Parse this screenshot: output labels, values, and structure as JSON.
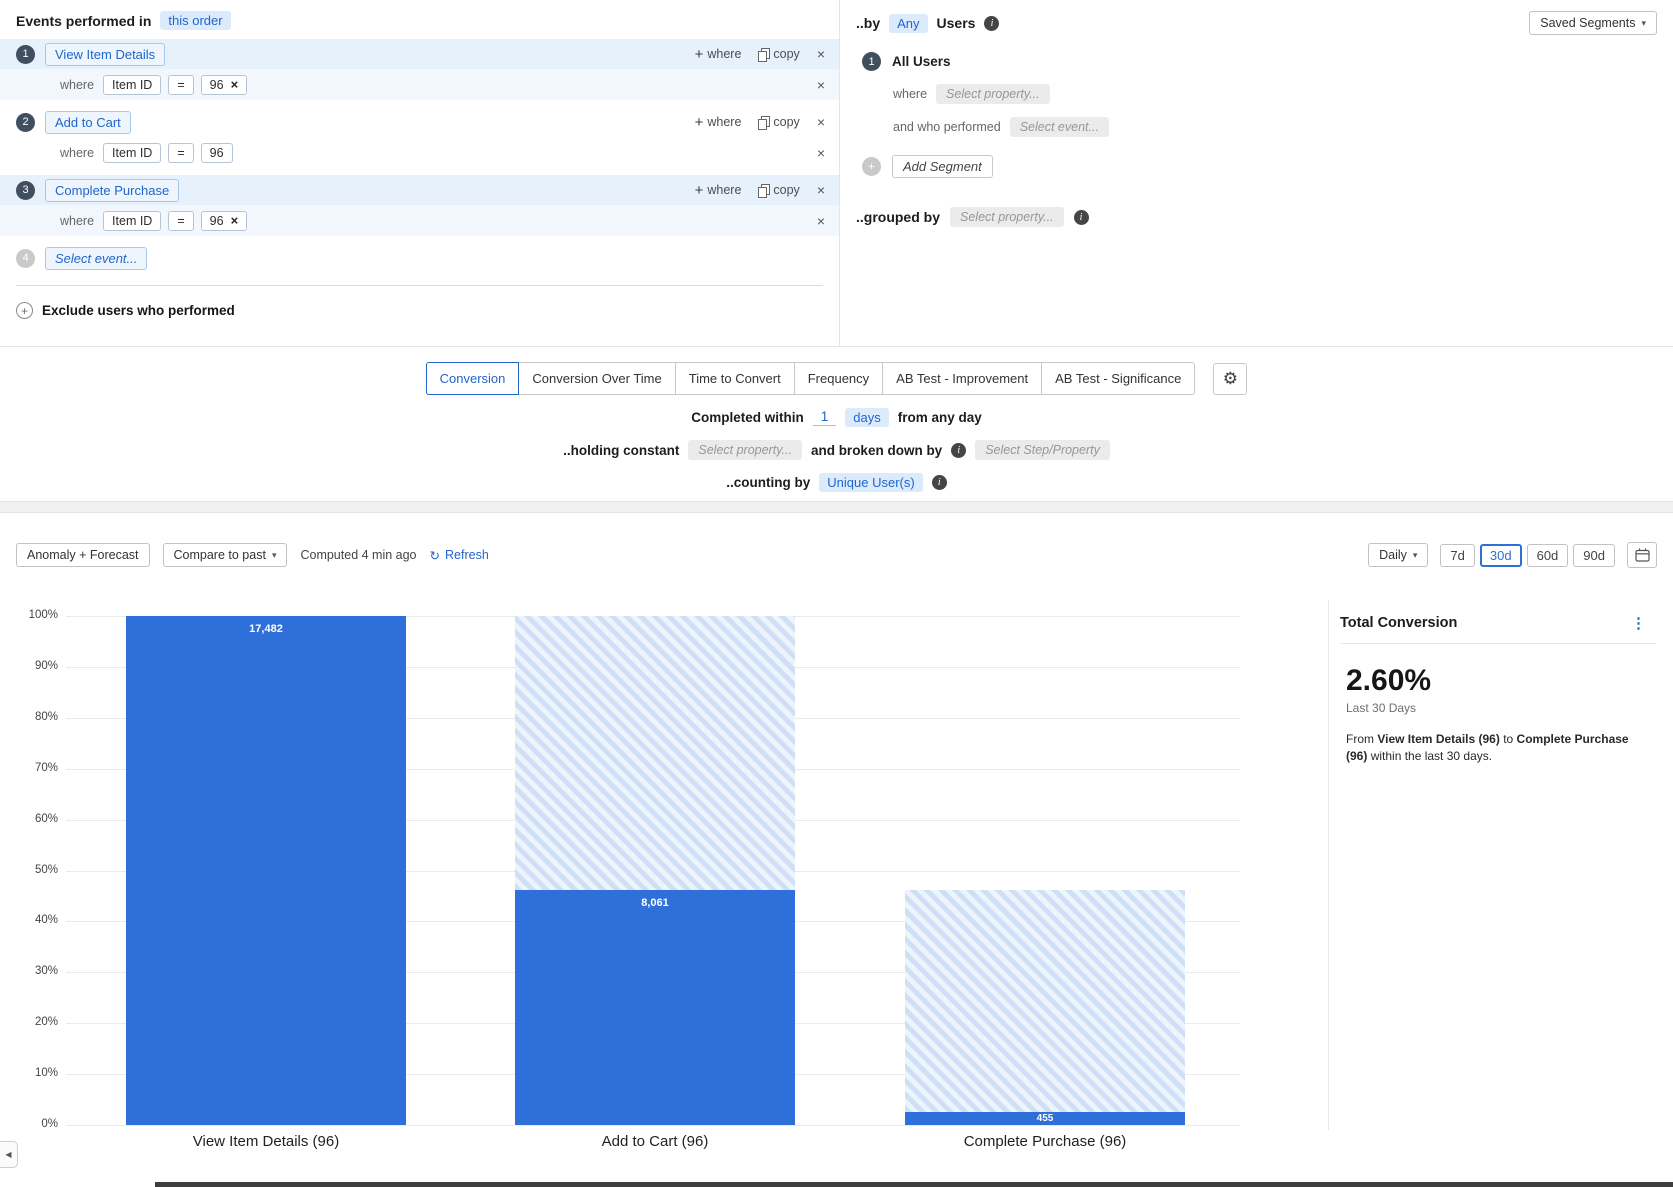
{
  "icons": {
    "close": "×",
    "plus": "+",
    "info": "i",
    "chevron_down": "▾",
    "refresh": "↻",
    "gear": "⚙",
    "kebab": "⋮",
    "collapse_left": "◀"
  },
  "events_panel": {
    "title": "Events performed in",
    "order_chip": "this order",
    "labels": {
      "where": "where",
      "copy": "copy"
    },
    "steps": [
      {
        "num": "1",
        "name": "View Item Details",
        "filter": {
          "property": "Item ID",
          "op": "=",
          "value": "96"
        }
      },
      {
        "num": "2",
        "name": "Add to Cart",
        "filter": {
          "property": "Item ID",
          "op": "=",
          "value": "96"
        }
      },
      {
        "num": "3",
        "name": "Complete Purchase",
        "filter": {
          "property": "Item ID",
          "op": "=",
          "value": "96"
        }
      }
    ],
    "next_step": {
      "num": "4",
      "placeholder": "Select event..."
    },
    "exclude_label": "Exclude users who performed"
  },
  "segments_panel": {
    "by_label": "..by",
    "any_value": "Any",
    "users_label": "Users",
    "saved_segments": "Saved Segments",
    "segments": [
      {
        "num": "1",
        "name": "All Users",
        "where_label": "where",
        "where_placeholder": "Select property...",
        "performed_label": "and who performed",
        "performed_placeholder": "Select event..."
      }
    ],
    "add_segment": "Add Segment",
    "grouped_by_label": "..grouped by",
    "grouped_by_placeholder": "Select property..."
  },
  "analysis": {
    "tabs": [
      "Conversion",
      "Conversion Over Time",
      "Time to Convert",
      "Frequency",
      "AB Test - Improvement",
      "AB Test - Significance"
    ],
    "active_tab": "Conversion",
    "completed": {
      "prefix": "Completed within",
      "value": "1",
      "unit": "days",
      "suffix": "from any day"
    },
    "holding": {
      "label": "..holding constant",
      "placeholder": "Select property...",
      "broken_label": "and broken down by",
      "broken_placeholder": "Select Step/Property"
    },
    "counting": {
      "label": "..counting by",
      "value": "Unique User(s)"
    }
  },
  "toolbar": {
    "anomaly": "Anomaly + Forecast",
    "compare": "Compare to past",
    "computed": "Computed 4 min ago",
    "refresh": "Refresh",
    "interval": "Daily",
    "ranges": [
      "7d",
      "30d",
      "60d",
      "90d"
    ],
    "active_range": "30d"
  },
  "chart_data": {
    "type": "bar",
    "categories": [
      "View Item Details (96)",
      "Add to Cart (96)",
      "Complete Purchase (96)"
    ],
    "values": [
      17482,
      8061,
      455
    ],
    "value_labels": [
      "17,482",
      "8,061",
      "455"
    ],
    "pct_of_first": [
      100,
      46.11,
      2.6
    ],
    "prev_pct": [
      null,
      100,
      46.11
    ],
    "y_ticks": [
      "100%",
      "90%",
      "80%",
      "70%",
      "60%",
      "50%",
      "40%",
      "30%",
      "20%",
      "10%",
      "0%"
    ],
    "ylim": [
      0,
      100
    ],
    "grid": true,
    "legend": false,
    "bar_color": "#2e6fd9",
    "hatch_color": "#cfe0f6",
    "hatch_alt": "#edf4fc",
    "bar_label_color": "#ffffff"
  },
  "summary": {
    "title": "Total Conversion",
    "value": "2.60%",
    "period": "Last 30 Days",
    "desc_from": "From",
    "desc_step_from": "View Item Details (96)",
    "desc_to": "to",
    "desc_step_to": "Complete Purchase (96)",
    "desc_suffix": "within the last 30 days."
  }
}
